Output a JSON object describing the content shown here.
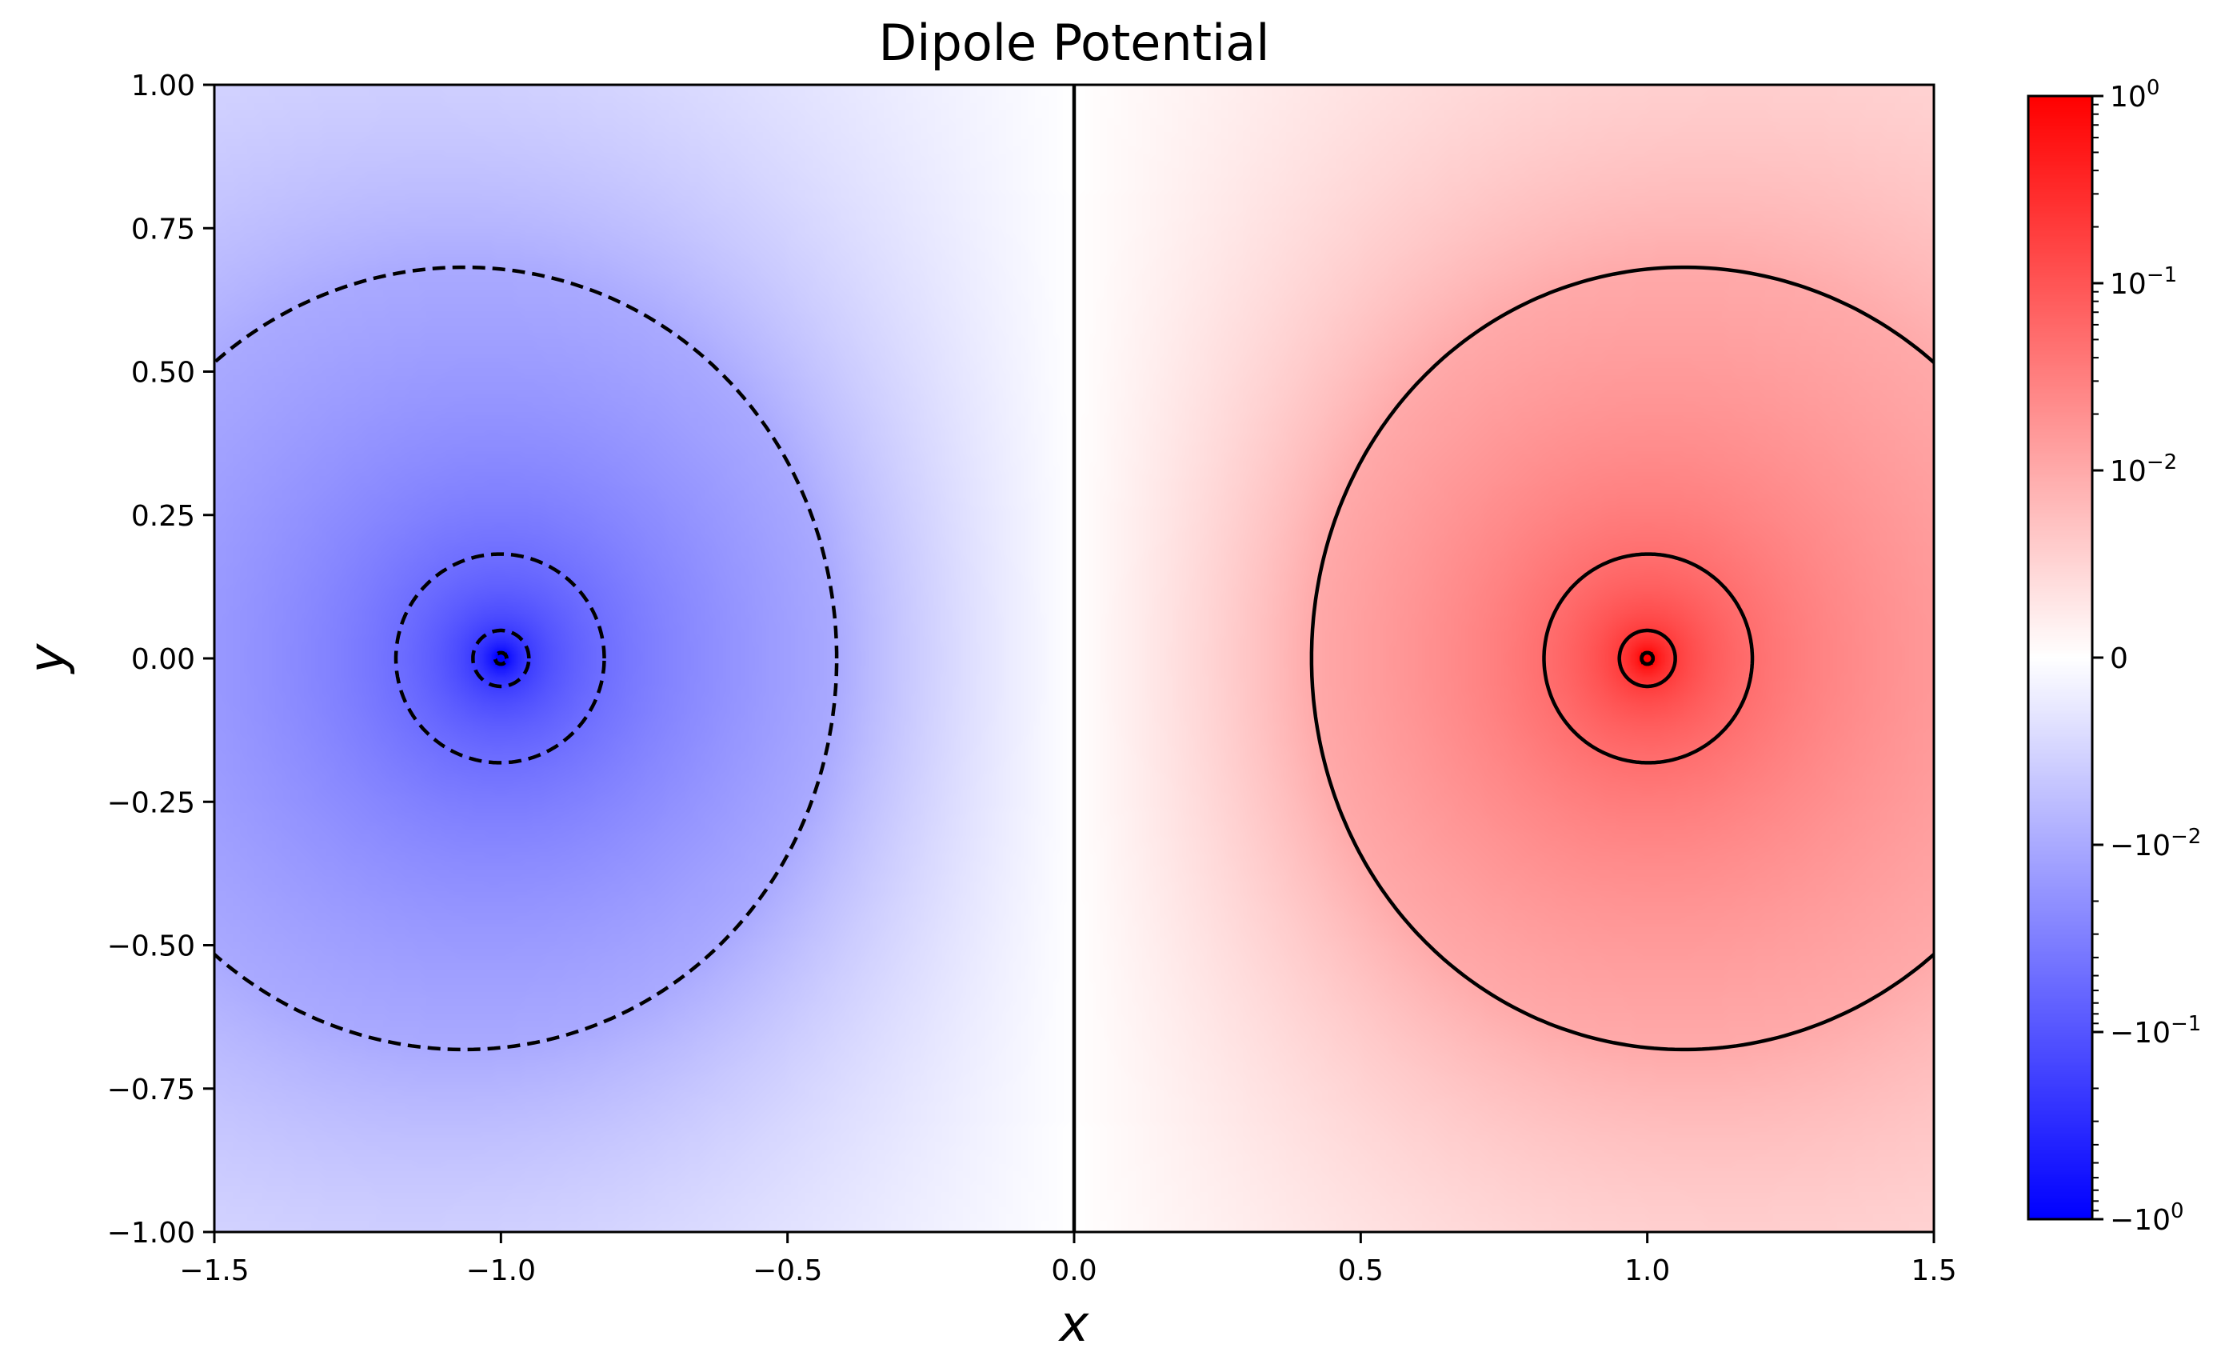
{
  "chart_data": {
    "type": "heatmap",
    "title": "Dipole Potential",
    "xlabel": "x",
    "ylabel": "y",
    "xlim": [
      -1.5,
      1.5
    ],
    "ylim": [
      -1.0,
      1.0
    ],
    "x_ticks": [
      -1.5,
      -1.0,
      -0.5,
      0.0,
      0.5,
      1.0,
      1.5
    ],
    "x_tick_labels": [
      "−1.5",
      "−1.0",
      "−0.5",
      "0.0",
      "0.5",
      "1.0",
      "1.5"
    ],
    "y_ticks": [
      -1.0,
      -0.75,
      -0.5,
      -0.25,
      0.0,
      0.25,
      0.5,
      0.75,
      1.0
    ],
    "y_tick_labels": [
      "−1.00",
      "−0.75",
      "−0.50",
      "−0.25",
      "0.00",
      "0.25",
      "0.50",
      "0.75",
      "1.00"
    ],
    "grid": false,
    "charges": [
      {
        "x": 1.0,
        "y": 0.0,
        "sign": "positive",
        "color": "#ff0000"
      },
      {
        "x": -1.0,
        "y": 0.0,
        "sign": "negative",
        "color": "#0000ff"
      }
    ],
    "colormap": {
      "name": "bwr",
      "negative_color": "#0000ff",
      "zero_color": "#ffffff",
      "positive_color": "#ff0000"
    },
    "colorbar": {
      "scale": "symlog",
      "linthresh": 0.01,
      "range": [
        -1,
        1
      ],
      "placement": "right",
      "ticks": [
        {
          "value": 1,
          "base": "10",
          "exp": "0",
          "sign": ""
        },
        {
          "value": 0.1,
          "base": "10",
          "exp": "−1",
          "sign": ""
        },
        {
          "value": 0.01,
          "base": "10",
          "exp": "−2",
          "sign": ""
        },
        {
          "value": 0,
          "base": "0",
          "exp": "",
          "sign": ""
        },
        {
          "value": -0.01,
          "base": "10",
          "exp": "−2",
          "sign": "−"
        },
        {
          "value": -0.1,
          "base": "10",
          "exp": "−1",
          "sign": "−"
        },
        {
          "value": -1,
          "base": "10",
          "exp": "0",
          "sign": "−"
        }
      ]
    },
    "contours": {
      "color": "#000000",
      "negative_style": "dashed",
      "positive_style": "solid",
      "levels": [
        -1.0,
        -0.2,
        -0.05,
        -0.01,
        0.0,
        0.01,
        0.05,
        0.2,
        1.0
      ]
    }
  }
}
